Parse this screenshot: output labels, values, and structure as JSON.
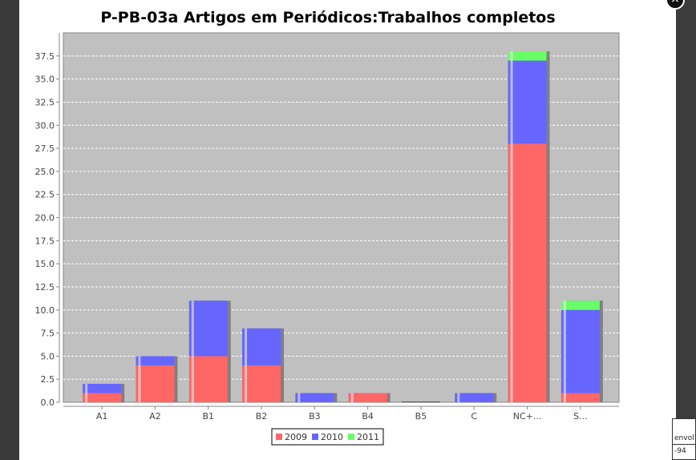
{
  "close_label": "×",
  "background_text": {
    "line1": "envol",
    "line2": "-94"
  },
  "chart_data": {
    "type": "bar",
    "stacked": true,
    "title": "P-PB-03a Artigos em Periódicos:Trabalhos completos",
    "xlabel": "",
    "ylabel": "",
    "categories": [
      "A1",
      "A2",
      "B1",
      "B2",
      "B3",
      "B4",
      "B5",
      "C",
      "NC+...",
      "S..."
    ],
    "series": [
      {
        "name": "2009",
        "color": "#ff6666",
        "values": [
          1,
          4,
          5,
          4,
          0,
          1,
          0,
          0,
          28,
          1
        ]
      },
      {
        "name": "2010",
        "color": "#6666ff",
        "values": [
          1,
          1,
          6,
          4,
          1,
          0,
          0,
          1,
          9,
          9
        ]
      },
      {
        "name": "2011",
        "color": "#66ff66",
        "values": [
          0,
          0,
          0,
          0,
          0,
          0,
          0,
          0,
          1,
          1
        ]
      }
    ],
    "ylim": [
      0,
      40
    ],
    "yticks": [
      "0.0",
      "2.5",
      "5.0",
      "7.5",
      "10.0",
      "12.5",
      "15.0",
      "17.5",
      "20.0",
      "22.5",
      "25.0",
      "27.5",
      "30.0",
      "32.5",
      "35.0",
      "37.5"
    ],
    "plot_background": "#c0c0c0",
    "grid": true,
    "legend_placement": "bottom-center"
  }
}
